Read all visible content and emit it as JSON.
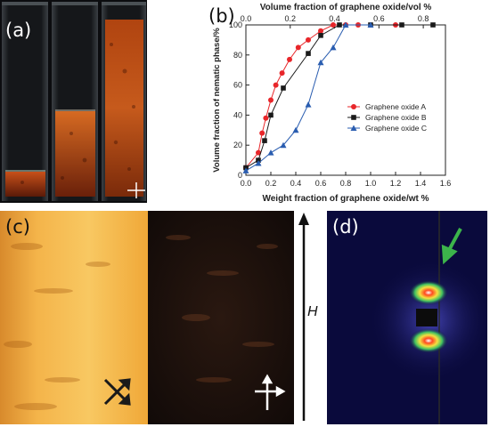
{
  "panels": {
    "a": {
      "label": "(a)"
    },
    "b": {
      "label": "(b)"
    },
    "c": {
      "label": "(c)",
      "field_label": "H"
    },
    "d": {
      "label": "(d)"
    }
  },
  "colors": {
    "series_a": "#e8262a",
    "series_b": "#1a1a1a",
    "series_c": "#2a5db0",
    "birefringence": "#c14a12",
    "polarized_bright": "#f2ad3a",
    "afm_background": "#0a0a3c",
    "arrow_green": "#3cb44b"
  },
  "chart_data": {
    "type": "line",
    "xlabel": "Weight fraction of graphene oxide/wt %",
    "ylabel": "Volume fraction of nematic phase/%",
    "top_xlabel": "Volume fraction of graphene oxide/vol %",
    "xlim": [
      0.0,
      1.6
    ],
    "ylim": [
      0,
      100
    ],
    "top_xlim": [
      0.0,
      0.9
    ],
    "x_ticks": [
      "0.0",
      "0.2",
      "0.4",
      "0.6",
      "0.8",
      "1.0",
      "1.2",
      "1.4",
      "1.6"
    ],
    "y_ticks": [
      "0",
      "20",
      "40",
      "60",
      "80",
      "100"
    ],
    "top_x_ticks": [
      "0.0",
      "0.2",
      "0.4",
      "0.6",
      "0.8"
    ],
    "legend_position": "center-right",
    "grid": false,
    "series": [
      {
        "name": "Graphene oxide A",
        "marker": "circle",
        "x": [
          0.0,
          0.1,
          0.13,
          0.16,
          0.2,
          0.24,
          0.29,
          0.35,
          0.42,
          0.5,
          0.6,
          0.7,
          0.8,
          0.9,
          1.2
        ],
        "y": [
          5,
          15,
          28,
          38,
          50,
          60,
          68,
          77,
          85,
          90,
          96,
          100,
          100,
          100,
          100
        ]
      },
      {
        "name": "Graphene oxide B",
        "marker": "square",
        "x": [
          0.0,
          0.1,
          0.15,
          0.2,
          0.3,
          0.5,
          0.6,
          0.75,
          1.0,
          1.25,
          1.5
        ],
        "y": [
          5,
          10,
          23,
          40,
          58,
          81,
          93,
          100,
          100,
          100,
          100
        ]
      },
      {
        "name": "Graphene oxide C",
        "marker": "triangle",
        "x": [
          0.0,
          0.1,
          0.2,
          0.3,
          0.4,
          0.5,
          0.6,
          0.7,
          0.8,
          1.0
        ],
        "y": [
          3,
          8,
          15,
          20,
          30,
          47,
          75,
          85,
          100,
          100
        ]
      }
    ]
  }
}
